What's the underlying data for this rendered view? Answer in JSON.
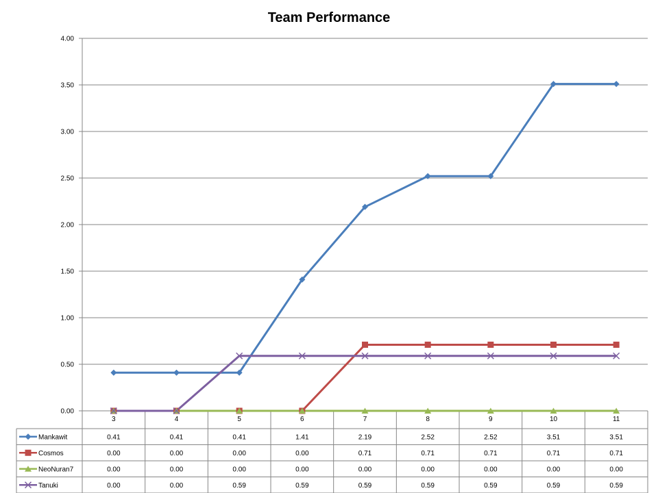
{
  "chart_data": {
    "type": "line",
    "title": "Team Performance",
    "xlabel": "",
    "ylabel": "",
    "categories": [
      "3",
      "4",
      "5",
      "6",
      "7",
      "8",
      "9",
      "10",
      "11"
    ],
    "ylim": [
      0,
      4
    ],
    "yticks": [
      "0.00",
      "0.50",
      "1.00",
      "1.50",
      "2.00",
      "2.50",
      "3.00",
      "3.50",
      "4.00"
    ],
    "grid": true,
    "legend": "data-table",
    "series": [
      {
        "name": "Mankawit",
        "color": "#4A7EBB",
        "marker": "diamond",
        "values": [
          0.41,
          0.41,
          0.41,
          1.41,
          2.19,
          2.52,
          2.52,
          3.51,
          3.51
        ],
        "labels": [
          "0.41",
          "0.41",
          "0.41",
          "1.41",
          "2.19",
          "2.52",
          "2.52",
          "3.51",
          "3.51"
        ]
      },
      {
        "name": "Cosmos",
        "color": "#BE4B48",
        "marker": "square",
        "values": [
          0,
          0,
          0,
          0,
          0.71,
          0.71,
          0.71,
          0.71,
          0.71
        ],
        "labels": [
          "0.00",
          "0.00",
          "0.00",
          "0.00",
          "0.71",
          "0.71",
          "0.71",
          "0.71",
          "0.71"
        ]
      },
      {
        "name": "NeoNuran7",
        "color": "#98B954",
        "marker": "triangle",
        "values": [
          0,
          0,
          0,
          0,
          0,
          0,
          0,
          0,
          0
        ],
        "labels": [
          "0.00",
          "0.00",
          "0.00",
          "0.00",
          "0.00",
          "0.00",
          "0.00",
          "0.00",
          "0.00"
        ]
      },
      {
        "name": "Tanuki",
        "color": "#7D5FA0",
        "marker": "x",
        "values": [
          0,
          0,
          0.59,
          0.59,
          0.59,
          0.59,
          0.59,
          0.59,
          0.59
        ],
        "labels": [
          "0.00",
          "0.00",
          "0.59",
          "0.59",
          "0.59",
          "0.59",
          "0.59",
          "0.59",
          "0.59"
        ]
      }
    ]
  }
}
